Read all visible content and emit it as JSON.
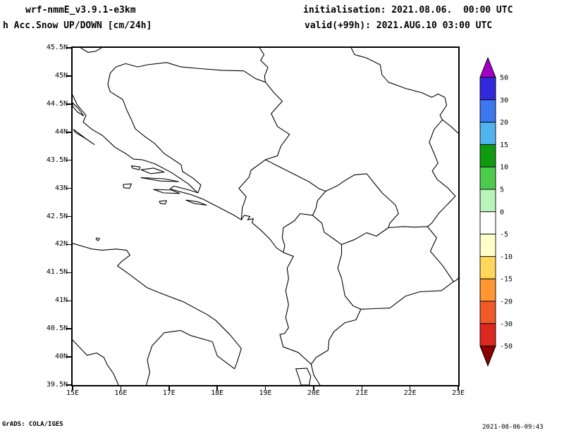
{
  "header": {
    "model_line": "wrf-nmmE_v3.9.1-e3km",
    "product_line": "h Acc.Snow UP/DOWN [cm/24h]",
    "init_line": "initialisation: 2021.08.06.  00:00 UTC",
    "valid_line": "valid(+99h): 2021.AUG.10 03:00 UTC"
  },
  "map": {
    "lat_ticks": [
      "45.5N",
      "45N",
      "44.5N",
      "44N",
      "43.5N",
      "43N",
      "42.5N",
      "42N",
      "41.5N",
      "41N",
      "40.5N",
      "40N",
      "39.5N"
    ],
    "lon_ticks": [
      "15E",
      "16E",
      "17E",
      "18E",
      "19E",
      "20E",
      "21E",
      "22E",
      "23E"
    ]
  },
  "colorbar": {
    "labels": [
      "50",
      "30",
      "20",
      "15",
      "10",
      "5",
      "0",
      "-5",
      "-10",
      "-15",
      "-20",
      "-30",
      "-50"
    ],
    "segment_colors": [
      "#3228dc",
      "#3c78f0",
      "#50b4f0",
      "#0f9b0f",
      "#4ccc4c",
      "#b8f5b8",
      "#ffffff",
      "#ffffc8",
      "#ffd75a",
      "#ff9632",
      "#f05a28",
      "#dc281e"
    ],
    "arrow_top": "#a000c8",
    "arrow_bottom": "#8c0000"
  },
  "footer": {
    "left": "GrADS: COLA/IGES",
    "right": "2021-08-06-09:43"
  },
  "chart_data": {
    "type": "map",
    "title": "Acc.Snow UP/DOWN [cm/24h]",
    "lon_range_deg_east": [
      15,
      23
    ],
    "lat_range_deg_north": [
      39.5,
      45.5
    ],
    "colorbar_levels": [
      -50,
      -30,
      -20,
      -15,
      -10,
      -5,
      0,
      5,
      10,
      15,
      20,
      30,
      50
    ],
    "shaded_field": "no shaded contours visible (field at zero over whole domain)"
  }
}
